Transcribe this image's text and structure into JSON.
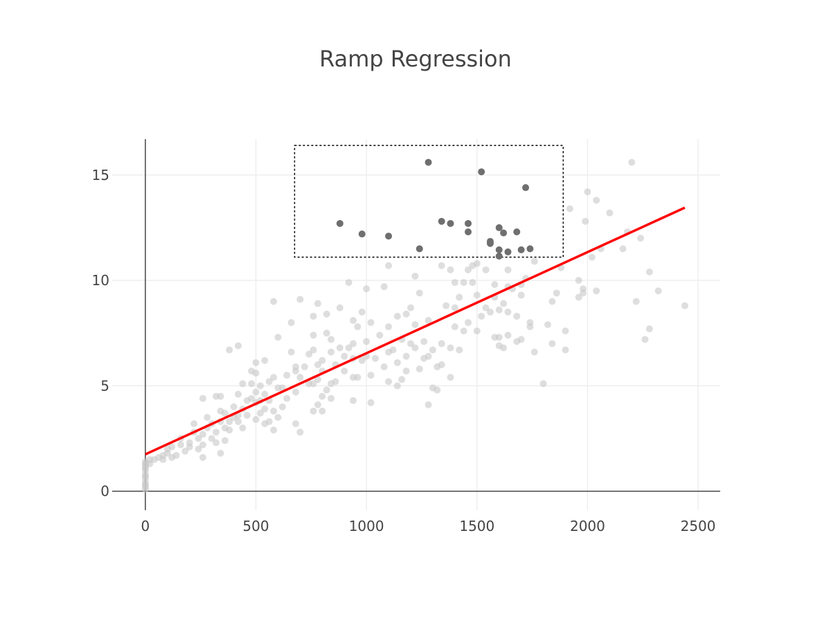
{
  "chart_data": {
    "type": "scatter",
    "title": "Ramp Regression",
    "xlabel": "",
    "ylabel": "",
    "xlim": [
      -150,
      2600
    ],
    "ylim": [
      -0.9,
      16.7
    ],
    "x_ticks": [
      0,
      500,
      1000,
      1500,
      2000,
      2500
    ],
    "y_ticks": [
      0,
      5,
      10,
      15
    ],
    "grid": true,
    "colors": {
      "background_points": "#c8c8c8",
      "highlighted_points": "#6f6f6f",
      "regression_line": "#ff0000",
      "grid": "#eeeeee",
      "axis": "#444444",
      "selection_box": "#000000"
    },
    "regression_line": {
      "x": [
        0,
        2440
      ],
      "y": [
        1.75,
        13.45
      ]
    },
    "selection_box": {
      "x": [
        675,
        1890
      ],
      "y": [
        11.1,
        16.4
      ],
      "style": "dotted"
    },
    "highlighted_points": [
      [
        880,
        12.7
      ],
      [
        980,
        12.2
      ],
      [
        1100,
        12.1
      ],
      [
        1240,
        11.5
      ],
      [
        1280,
        15.6
      ],
      [
        1340,
        12.8
      ],
      [
        1380,
        12.7
      ],
      [
        1460,
        12.7
      ],
      [
        1460,
        12.3
      ],
      [
        1520,
        15.15
      ],
      [
        1560,
        11.85
      ],
      [
        1560,
        11.75
      ],
      [
        1600,
        12.5
      ],
      [
        1600,
        11.45
      ],
      [
        1600,
        11.15
      ],
      [
        1620,
        12.25
      ],
      [
        1640,
        11.35
      ],
      [
        1680,
        12.3
      ],
      [
        1700,
        11.45
      ],
      [
        1720,
        14.4
      ],
      [
        1740,
        11.5
      ]
    ],
    "points": [
      [
        0,
        0.1
      ],
      [
        0,
        0.2
      ],
      [
        0,
        0.3
      ],
      [
        0,
        0.4
      ],
      [
        0,
        0.6
      ],
      [
        0,
        0.7
      ],
      [
        0,
        0.8
      ],
      [
        0,
        1.0
      ],
      [
        0,
        1.1
      ],
      [
        0,
        1.2
      ],
      [
        0,
        1.3
      ],
      [
        0,
        1.4
      ],
      [
        20,
        1.3
      ],
      [
        20,
        1.5
      ],
      [
        40,
        1.5
      ],
      [
        60,
        1.6
      ],
      [
        80,
        1.5
      ],
      [
        80,
        1.7
      ],
      [
        100,
        1.8
      ],
      [
        100,
        2.0
      ],
      [
        120,
        1.6
      ],
      [
        120,
        2.1
      ],
      [
        140,
        1.7
      ],
      [
        160,
        2.2
      ],
      [
        160,
        2.5
      ],
      [
        180,
        1.9
      ],
      [
        200,
        2.1
      ],
      [
        200,
        2.3
      ],
      [
        220,
        2.8
      ],
      [
        220,
        3.2
      ],
      [
        240,
        2.0
      ],
      [
        240,
        2.5
      ],
      [
        260,
        1.6
      ],
      [
        260,
        2.2
      ],
      [
        260,
        2.7
      ],
      [
        260,
        4.4
      ],
      [
        280,
        3.0
      ],
      [
        280,
        3.5
      ],
      [
        300,
        2.5
      ],
      [
        300,
        3.2
      ],
      [
        320,
        2.3
      ],
      [
        320,
        2.8
      ],
      [
        320,
        4.5
      ],
      [
        340,
        1.8
      ],
      [
        340,
        3.3
      ],
      [
        340,
        3.8
      ],
      [
        340,
        4.5
      ],
      [
        360,
        2.4
      ],
      [
        360,
        3.0
      ],
      [
        360,
        3.7
      ],
      [
        380,
        2.9
      ],
      [
        380,
        3.3
      ],
      [
        380,
        6.7
      ],
      [
        400,
        3.5
      ],
      [
        400,
        4.0
      ],
      [
        420,
        3.3
      ],
      [
        420,
        3.6
      ],
      [
        420,
        4.6
      ],
      [
        420,
        6.9
      ],
      [
        440,
        3.0
      ],
      [
        440,
        3.9
      ],
      [
        440,
        5.1
      ],
      [
        460,
        3.6
      ],
      [
        460,
        4.3
      ],
      [
        480,
        4.4
      ],
      [
        480,
        5.1
      ],
      [
        480,
        5.7
      ],
      [
        500,
        3.4
      ],
      [
        500,
        4.2
      ],
      [
        500,
        4.7
      ],
      [
        500,
        5.6
      ],
      [
        500,
        6.1
      ],
      [
        520,
        3.7
      ],
      [
        520,
        4.3
      ],
      [
        520,
        5.0
      ],
      [
        540,
        3.2
      ],
      [
        540,
        3.9
      ],
      [
        540,
        4.6
      ],
      [
        540,
        6.2
      ],
      [
        560,
        3.3
      ],
      [
        560,
        4.3
      ],
      [
        560,
        5.2
      ],
      [
        580,
        2.9
      ],
      [
        580,
        3.8
      ],
      [
        580,
        5.4
      ],
      [
        580,
        9.0
      ],
      [
        600,
        3.5
      ],
      [
        600,
        4.9
      ],
      [
        600,
        7.3
      ],
      [
        620,
        4.0
      ],
      [
        620,
        4.9
      ],
      [
        640,
        4.4
      ],
      [
        640,
        5.5
      ],
      [
        660,
        6.6
      ],
      [
        660,
        8.0
      ],
      [
        680,
        3.2
      ],
      [
        680,
        4.7
      ],
      [
        680,
        5.7
      ],
      [
        680,
        5.9
      ],
      [
        700,
        2.8
      ],
      [
        700,
        5.4
      ],
      [
        700,
        9.1
      ],
      [
        720,
        5.9
      ],
      [
        740,
        5.1
      ],
      [
        740,
        6.5
      ],
      [
        760,
        3.8
      ],
      [
        760,
        5.1
      ],
      [
        760,
        6.7
      ],
      [
        760,
        7.4
      ],
      [
        760,
        8.3
      ],
      [
        780,
        4.1
      ],
      [
        780,
        5.3
      ],
      [
        780,
        6.0
      ],
      [
        780,
        8.9
      ],
      [
        800,
        3.8
      ],
      [
        800,
        4.5
      ],
      [
        800,
        5.7
      ],
      [
        800,
        6.2
      ],
      [
        820,
        4.8
      ],
      [
        820,
        7.5
      ],
      [
        820,
        8.4
      ],
      [
        840,
        4.4
      ],
      [
        840,
        5.1
      ],
      [
        840,
        6.6
      ],
      [
        840,
        7.2
      ],
      [
        860,
        5.2
      ],
      [
        860,
        6.0
      ],
      [
        880,
        6.8
      ],
      [
        880,
        8.7
      ],
      [
        900,
        5.7
      ],
      [
        900,
        6.4
      ],
      [
        920,
        6.8
      ],
      [
        920,
        9.9
      ],
      [
        940,
        4.3
      ],
      [
        940,
        5.4
      ],
      [
        940,
        6.3
      ],
      [
        940,
        7.0
      ],
      [
        940,
        8.1
      ],
      [
        960,
        5.4
      ],
      [
        960,
        7.8
      ],
      [
        980,
        6.2
      ],
      [
        980,
        8.5
      ],
      [
        1000,
        6.4
      ],
      [
        1000,
        7.1
      ],
      [
        1000,
        9.6
      ],
      [
        1020,
        4.2
      ],
      [
        1020,
        5.5
      ],
      [
        1020,
        8.0
      ],
      [
        1040,
        6.3
      ],
      [
        1060,
        7.4
      ],
      [
        1080,
        5.9
      ],
      [
        1080,
        9.7
      ],
      [
        1100,
        5.2
      ],
      [
        1100,
        6.6
      ],
      [
        1100,
        7.8
      ],
      [
        1100,
        10.7
      ],
      [
        1120,
        6.7
      ],
      [
        1140,
        5.0
      ],
      [
        1140,
        6.1
      ],
      [
        1140,
        8.3
      ],
      [
        1160,
        5.3
      ],
      [
        1160,
        7.2
      ],
      [
        1180,
        5.7
      ],
      [
        1180,
        6.4
      ],
      [
        1180,
        8.4
      ],
      [
        1200,
        7.0
      ],
      [
        1200,
        8.7
      ],
      [
        1220,
        6.8
      ],
      [
        1220,
        7.9
      ],
      [
        1220,
        10.2
      ],
      [
        1240,
        5.8
      ],
      [
        1240,
        9.4
      ],
      [
        1260,
        6.3
      ],
      [
        1260,
        7.1
      ],
      [
        1280,
        4.1
      ],
      [
        1280,
        6.4
      ],
      [
        1280,
        8.1
      ],
      [
        1300,
        4.9
      ],
      [
        1300,
        6.7
      ],
      [
        1320,
        4.8
      ],
      [
        1320,
        5.9
      ],
      [
        1340,
        6.0
      ],
      [
        1340,
        7.0
      ],
      [
        1340,
        10.7
      ],
      [
        1360,
        8.8
      ],
      [
        1380,
        5.4
      ],
      [
        1380,
        6.8
      ],
      [
        1380,
        10.5
      ],
      [
        1400,
        7.8
      ],
      [
        1400,
        8.7
      ],
      [
        1400,
        9.9
      ],
      [
        1420,
        6.7
      ],
      [
        1420,
        9.2
      ],
      [
        1440,
        7.6
      ],
      [
        1440,
        9.9
      ],
      [
        1460,
        8.0
      ],
      [
        1460,
        10.5
      ],
      [
        1480,
        9.9
      ],
      [
        1480,
        10.7
      ],
      [
        1500,
        7.6
      ],
      [
        1500,
        9.3
      ],
      [
        1500,
        10.8
      ],
      [
        1520,
        8.3
      ],
      [
        1540,
        8.7
      ],
      [
        1540,
        10.5
      ],
      [
        1560,
        8.5
      ],
      [
        1580,
        7.3
      ],
      [
        1580,
        9.2
      ],
      [
        1580,
        9.8
      ],
      [
        1600,
        7.3
      ],
      [
        1600,
        8.6
      ],
      [
        1600,
        6.9
      ],
      [
        1620,
        6.8
      ],
      [
        1620,
        8.9
      ],
      [
        1640,
        7.4
      ],
      [
        1640,
        8.5
      ],
      [
        1640,
        9.7
      ],
      [
        1640,
        10.5
      ],
      [
        1660,
        9.6
      ],
      [
        1680,
        7.1
      ],
      [
        1680,
        8.3
      ],
      [
        1700,
        7.2
      ],
      [
        1700,
        9.3
      ],
      [
        1700,
        9.8
      ],
      [
        1720,
        10.1
      ],
      [
        1740,
        7.8
      ],
      [
        1740,
        8.0
      ],
      [
        1760,
        6.6
      ],
      [
        1760,
        10.9
      ],
      [
        1800,
        5.1
      ],
      [
        1820,
        7.9
      ],
      [
        1840,
        7.0
      ],
      [
        1840,
        9.0
      ],
      [
        1860,
        9.4
      ],
      [
        1880,
        10.6
      ],
      [
        1900,
        6.7
      ],
      [
        1900,
        7.6
      ],
      [
        1920,
        13.4
      ],
      [
        1960,
        9.2
      ],
      [
        1960,
        10.0
      ],
      [
        1980,
        9.4
      ],
      [
        1980,
        9.6
      ],
      [
        1990,
        12.8
      ],
      [
        2000,
        14.2
      ],
      [
        2020,
        11.1
      ],
      [
        2040,
        9.5
      ],
      [
        2040,
        13.8
      ],
      [
        2060,
        11.5
      ],
      [
        2100,
        13.2
      ],
      [
        2160,
        11.5
      ],
      [
        2180,
        12.3
      ],
      [
        2200,
        15.6
      ],
      [
        2220,
        9.0
      ],
      [
        2240,
        12.0
      ],
      [
        2260,
        7.2
      ],
      [
        2280,
        7.7
      ],
      [
        2280,
        10.4
      ],
      [
        2320,
        9.5
      ],
      [
        2440,
        8.8
      ]
    ]
  }
}
